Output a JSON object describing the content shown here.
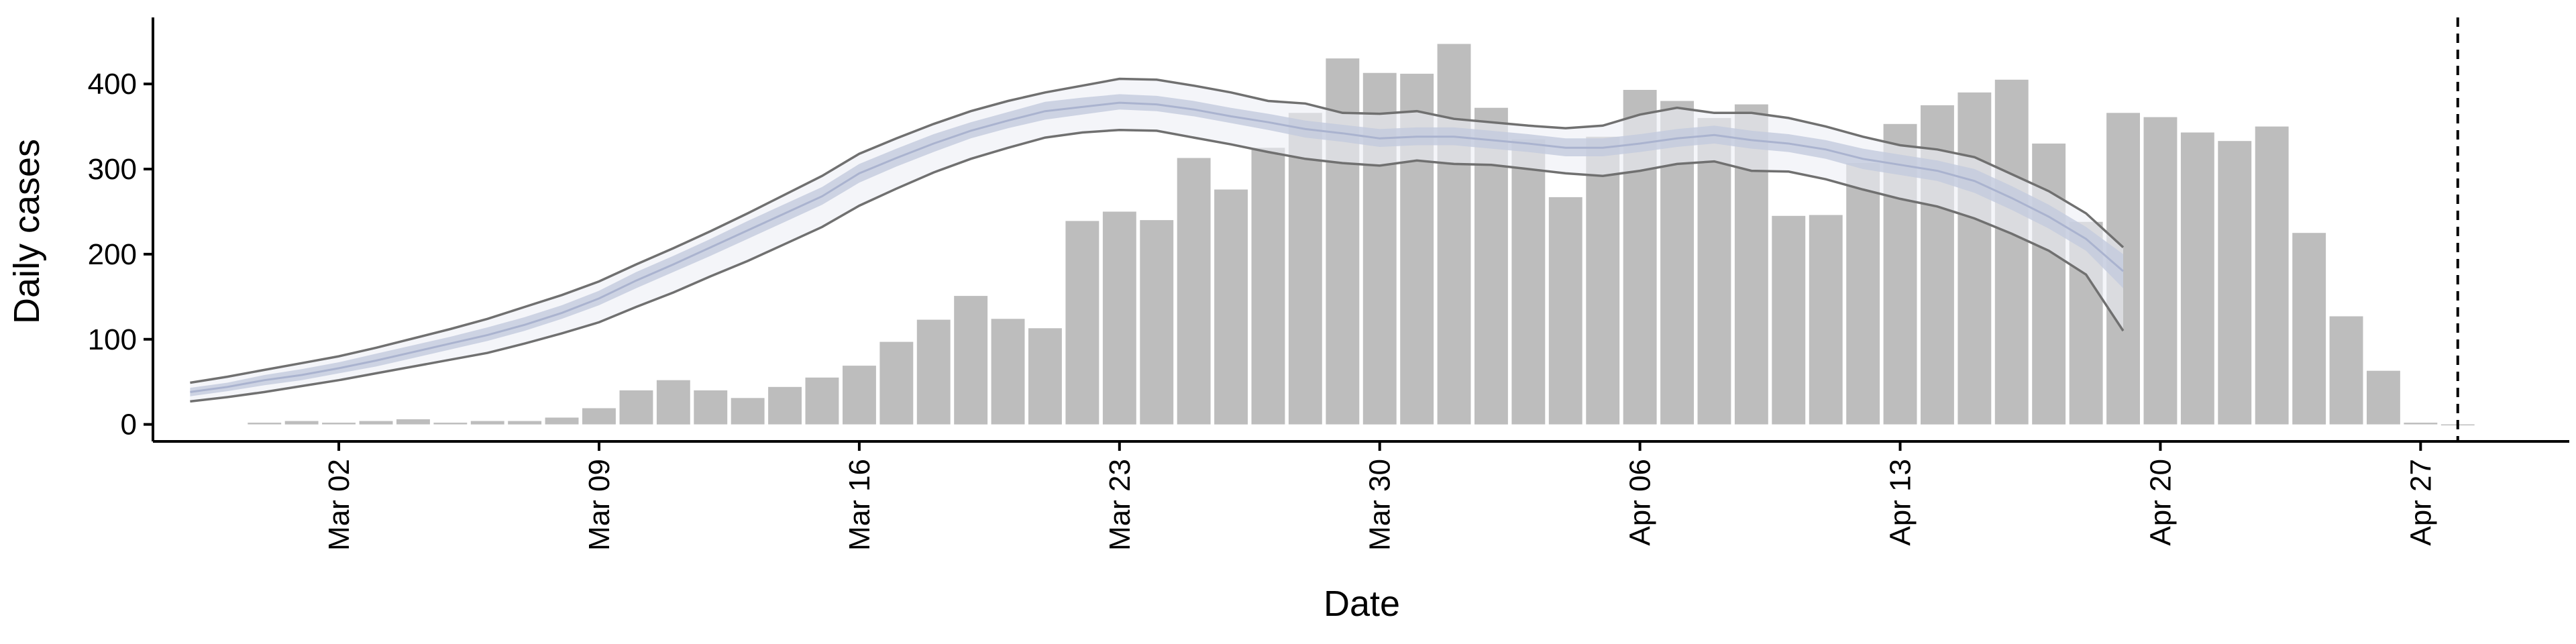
{
  "chart_data": {
    "type": "bar",
    "xlabel": "Date",
    "ylabel": "Daily cases",
    "x_start": "2020-02-24",
    "xlim": [
      "2020-02-26",
      "2020-05-01"
    ],
    "ylim": [
      -20,
      475
    ],
    "yticks": [
      0,
      100,
      200,
      300,
      400
    ],
    "xticks": [
      {
        "date": "2020-03-02",
        "label": "Mar 02"
      },
      {
        "date": "2020-03-09",
        "label": "Mar 09"
      },
      {
        "date": "2020-03-16",
        "label": "Mar 16"
      },
      {
        "date": "2020-03-23",
        "label": "Mar 23"
      },
      {
        "date": "2020-03-30",
        "label": "Mar 30"
      },
      {
        "date": "2020-04-06",
        "label": "Apr 06"
      },
      {
        "date": "2020-04-13",
        "label": "Apr 13"
      },
      {
        "date": "2020-04-20",
        "label": "Apr 20"
      },
      {
        "date": "2020-04-27",
        "label": "Apr 27"
      }
    ],
    "cutoff_date": "2020-04-28",
    "grid": false,
    "bars": {
      "color": "#bdbdbd",
      "dates": [
        "2020-02-29",
        "2020-03-01",
        "2020-03-02",
        "2020-03-03",
        "2020-03-04",
        "2020-03-05",
        "2020-03-06",
        "2020-03-07",
        "2020-03-08",
        "2020-03-09",
        "2020-03-10",
        "2020-03-11",
        "2020-03-12",
        "2020-03-13",
        "2020-03-14",
        "2020-03-15",
        "2020-03-16",
        "2020-03-17",
        "2020-03-18",
        "2020-03-19",
        "2020-03-20",
        "2020-03-21",
        "2020-03-22",
        "2020-03-23",
        "2020-03-24",
        "2020-03-25",
        "2020-03-26",
        "2020-03-27",
        "2020-03-28",
        "2020-03-29",
        "2020-03-30",
        "2020-03-31",
        "2020-04-01",
        "2020-04-02",
        "2020-04-03",
        "2020-04-04",
        "2020-04-05",
        "2020-04-06",
        "2020-04-07",
        "2020-04-08",
        "2020-04-09",
        "2020-04-10",
        "2020-04-11",
        "2020-04-12",
        "2020-04-13",
        "2020-04-14",
        "2020-04-15",
        "2020-04-16",
        "2020-04-17",
        "2020-04-18",
        "2020-04-19",
        "2020-04-20",
        "2020-04-21",
        "2020-04-22",
        "2020-04-23",
        "2020-04-24",
        "2020-04-25",
        "2020-04-26",
        "2020-04-27",
        "2020-04-28"
      ],
      "values": [
        2,
        4,
        2,
        4,
        6,
        2,
        4,
        4,
        8,
        19,
        40,
        52,
        40,
        31,
        44,
        55,
        69,
        97,
        123,
        151,
        124,
        113,
        239,
        250,
        240,
        313,
        276,
        325,
        366,
        430,
        413,
        412,
        447,
        372,
        335,
        267,
        338,
        393,
        380,
        360,
        376,
        245,
        246,
        307,
        353,
        375,
        390,
        405,
        330,
        238,
        366,
        361,
        343,
        333,
        350,
        225,
        127,
        63,
        2,
        0
      ]
    },
    "series": [
      {
        "dates": [
          "2020-02-27",
          "2020-02-28",
          "2020-02-29",
          "2020-03-01",
          "2020-03-02",
          "2020-03-03",
          "2020-03-04",
          "2020-03-05",
          "2020-03-06",
          "2020-03-07",
          "2020-03-08",
          "2020-03-09",
          "2020-03-10",
          "2020-03-11",
          "2020-03-12",
          "2020-03-13",
          "2020-03-14",
          "2020-03-15",
          "2020-03-16",
          "2020-03-17",
          "2020-03-18",
          "2020-03-19",
          "2020-03-20",
          "2020-03-21",
          "2020-03-22",
          "2020-03-23",
          "2020-03-24",
          "2020-03-25",
          "2020-03-26",
          "2020-03-27",
          "2020-03-28",
          "2020-03-29",
          "2020-03-30",
          "2020-03-31",
          "2020-04-01",
          "2020-04-02",
          "2020-04-03",
          "2020-04-04",
          "2020-04-05",
          "2020-04-06",
          "2020-04-07",
          "2020-04-08",
          "2020-04-09",
          "2020-04-10",
          "2020-04-11",
          "2020-04-12",
          "2020-04-13",
          "2020-04-14",
          "2020-04-15",
          "2020-04-16",
          "2020-04-17",
          "2020-04-18",
          "2020-04-19"
        ],
        "median": [
          38,
          44,
          52,
          58,
          66,
          75,
          85,
          95,
          105,
          117,
          131,
          148,
          169,
          188,
          208,
          228,
          248,
          268,
          295,
          313,
          330,
          345,
          357,
          368,
          373,
          378,
          376,
          370,
          362,
          355,
          347,
          342,
          336,
          338,
          338,
          334,
          330,
          325,
          325,
          330,
          336,
          340,
          334,
          330,
          323,
          312,
          305,
          298,
          286,
          266,
          244,
          218,
          180
        ],
        "inner_low": [
          33,
          39,
          46,
          52,
          60,
          68,
          78,
          88,
          98,
          110,
          124,
          140,
          160,
          179,
          198,
          218,
          238,
          258,
          284,
          303,
          320,
          336,
          348,
          358,
          364,
          370,
          368,
          362,
          354,
          346,
          337,
          332,
          326,
          328,
          328,
          324,
          320,
          315,
          315,
          320,
          326,
          330,
          324,
          320,
          312,
          300,
          293,
          286,
          272,
          252,
          230,
          204,
          160
        ],
        "inner_high": [
          43,
          49,
          58,
          65,
          73,
          83,
          93,
          103,
          114,
          126,
          140,
          157,
          179,
          198,
          218,
          239,
          259,
          279,
          306,
          324,
          341,
          355,
          367,
          379,
          384,
          388,
          386,
          380,
          372,
          365,
          357,
          352,
          347,
          349,
          349,
          345,
          341,
          336,
          336,
          341,
          347,
          351,
          345,
          341,
          334,
          324,
          317,
          310,
          300,
          280,
          258,
          232,
          200
        ],
        "outer_low": [
          27,
          32,
          38,
          45,
          52,
          60,
          68,
          76,
          84,
          95,
          107,
          120,
          138,
          155,
          174,
          192,
          212,
          232,
          257,
          277,
          296,
          312,
          325,
          337,
          343,
          346,
          345,
          337,
          329,
          320,
          312,
          307,
          304,
          310,
          306,
          305,
          300,
          295,
          292,
          298,
          306,
          309,
          298,
          297,
          288,
          276,
          265,
          256,
          242,
          224,
          204,
          176,
          110
        ],
        "outer_high": [
          49,
          56,
          64,
          72,
          80,
          90,
          101,
          112,
          124,
          138,
          152,
          168,
          188,
          207,
          227,
          248,
          270,
          292,
          318,
          336,
          353,
          368,
          380,
          390,
          398,
          406,
          405,
          398,
          390,
          380,
          377,
          366,
          365,
          368,
          359,
          355,
          351,
          348,
          351,
          364,
          372,
          366,
          366,
          360,
          350,
          338,
          328,
          323,
          314,
          294,
          274,
          248,
          208
        ]
      }
    ],
    "colors": {
      "bars": "#bdbdbd",
      "band_outer": "#eceef5",
      "band_inner": "#c3cadd",
      "band_edge": "#707070",
      "axis": "#000000"
    }
  }
}
